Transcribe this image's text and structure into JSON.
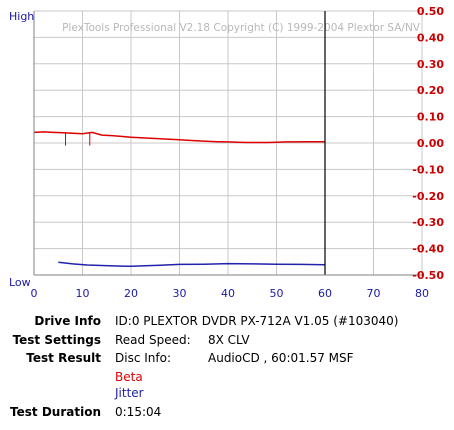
{
  "chart_data": {
    "type": "line",
    "watermark": "PlexTools Professional V2.18 Copyright (C) 1999-2004 Plextor SA/NV",
    "left_axis_top_label": "High",
    "left_axis_bottom_label": "Low",
    "xlim": [
      0,
      80
    ],
    "ylim": [
      -0.5,
      0.5
    ],
    "x_ticks": [
      "0",
      "10",
      "20",
      "30",
      "40",
      "50",
      "60",
      "70",
      "80"
    ],
    "y_ticks": [
      "0.50",
      "0.40",
      "0.30",
      "0.20",
      "0.10",
      "0.00",
      "-0.10",
      "-0.20",
      "-0.30",
      "-0.40",
      "-0.50"
    ],
    "grid": true,
    "end_marker_x": 60,
    "colors": {
      "beta": "#dd0000",
      "jitter": "#2222aa",
      "grid": "#c8c8c8",
      "end_marker": "#000000"
    },
    "series": [
      {
        "name": "Beta",
        "axis": "right",
        "x": [
          0,
          2,
          4,
          6,
          8,
          10,
          12,
          14,
          16,
          18,
          20,
          22,
          24,
          26,
          28,
          30,
          32,
          34,
          36,
          38,
          40,
          42,
          44,
          46,
          48,
          50,
          52,
          54,
          56,
          58,
          60
        ],
        "y": [
          0.04,
          0.042,
          0.04,
          0.039,
          0.037,
          0.035,
          0.04,
          0.03,
          0.028,
          0.025,
          0.022,
          0.02,
          0.018,
          0.016,
          0.014,
          0.012,
          0.01,
          0.008,
          0.006,
          0.005,
          0.004,
          0.003,
          0.002,
          0.002,
          0.002,
          0.003,
          0.004,
          0.004,
          0.005,
          0.005,
          0.005
        ],
        "spikes": [
          {
            "x": 6.5,
            "y": -0.01
          },
          {
            "x": 11.5,
            "y": -0.01
          }
        ]
      },
      {
        "name": "Jitter",
        "axis": "left",
        "x": [
          5,
          8,
          11,
          14,
          17,
          20,
          23,
          26,
          30,
          35,
          40,
          45,
          50,
          55,
          60
        ],
        "y": [
          0.048,
          0.042,
          0.038,
          0.036,
          0.034,
          0.033,
          0.035,
          0.037,
          0.04,
          0.041,
          0.043,
          0.042,
          0.041,
          0.04,
          0.039
        ]
      }
    ]
  },
  "info": {
    "drive_info": {
      "label": "Drive Info",
      "value": "ID:0 PLEXTOR DVDR PX-712A V1.05 (#103040)"
    },
    "test_settings": {
      "label": "Test Settings",
      "key": "Read Speed:",
      "value": "8X CLV"
    },
    "test_result": {
      "label": "Test Result",
      "key": "Disc Info:",
      "value": "AudioCD , 60:01.57 MSF"
    },
    "legend": {
      "beta": "Beta",
      "jitter": "Jitter"
    },
    "test_duration": {
      "label": "Test Duration",
      "value": "0:15:04"
    }
  }
}
